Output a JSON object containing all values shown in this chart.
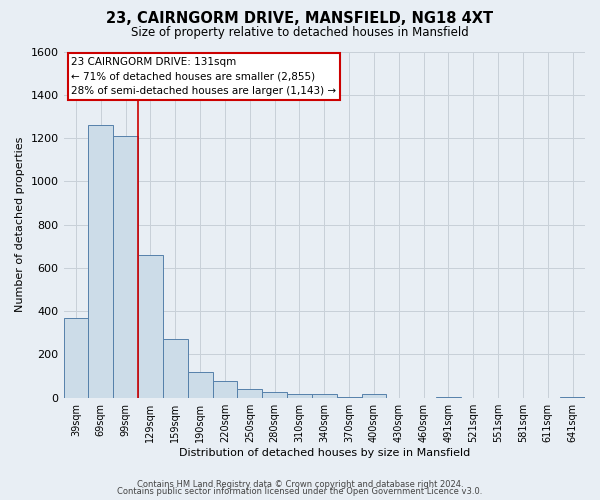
{
  "title": "23, CAIRNGORM DRIVE, MANSFIELD, NG18 4XT",
  "subtitle": "Size of property relative to detached houses in Mansfield",
  "xlabel": "Distribution of detached houses by size in Mansfield",
  "ylabel": "Number of detached properties",
  "bar_color": "#ccdce8",
  "bar_edge_color": "#5580aa",
  "bins": [
    "39sqm",
    "69sqm",
    "99sqm",
    "129sqm",
    "159sqm",
    "190sqm",
    "220sqm",
    "250sqm",
    "280sqm",
    "310sqm",
    "340sqm",
    "370sqm",
    "400sqm",
    "430sqm",
    "460sqm",
    "491sqm",
    "521sqm",
    "551sqm",
    "581sqm",
    "611sqm",
    "641sqm"
  ],
  "values": [
    370,
    1260,
    1210,
    660,
    270,
    120,
    75,
    40,
    25,
    15,
    15,
    5,
    15,
    0,
    0,
    5,
    0,
    0,
    0,
    0,
    5
  ],
  "red_line_bin_idx": 3,
  "annotation_line1": "23 CAIRNGORM DRIVE: 131sqm",
  "annotation_line2": "← 71% of detached houses are smaller (2,855)",
  "annotation_line3": "28% of semi-detached houses are larger (1,143) →",
  "annotation_box_color": "#ffffff",
  "annotation_box_edge_color": "#cc0000",
  "ylim": [
    0,
    1600
  ],
  "yticks": [
    0,
    200,
    400,
    600,
    800,
    1000,
    1200,
    1400,
    1600
  ],
  "footer1": "Contains HM Land Registry data © Crown copyright and database right 2024.",
  "footer2": "Contains public sector information licensed under the Open Government Licence v3.0.",
  "bg_color": "#e8eef4",
  "plot_bg_color": "#e8eef4",
  "grid_color": "#c8d0d8"
}
